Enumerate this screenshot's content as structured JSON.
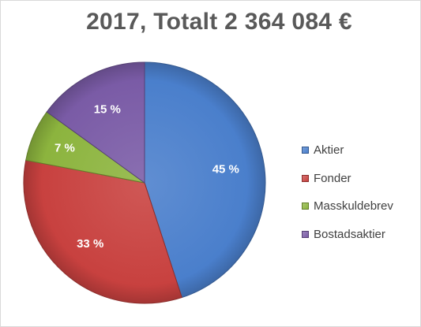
{
  "chart_data": {
    "type": "pie",
    "title": "2017, Totalt 2 364 084 €",
    "slices": [
      {
        "name": "Aktier",
        "value": 45,
        "label": "45 %",
        "color": "#4a7fcc"
      },
      {
        "name": "Fonder",
        "value": 33,
        "label": "33 %",
        "color": "#c8413f"
      },
      {
        "name": "Masskuldebrev",
        "value": 7,
        "label": "7 %",
        "color": "#8cb43e"
      },
      {
        "name": "Bostadsaktier",
        "value": 15,
        "label": "15 %",
        "color": "#7a5ba6"
      }
    ],
    "legend_position": "right"
  }
}
